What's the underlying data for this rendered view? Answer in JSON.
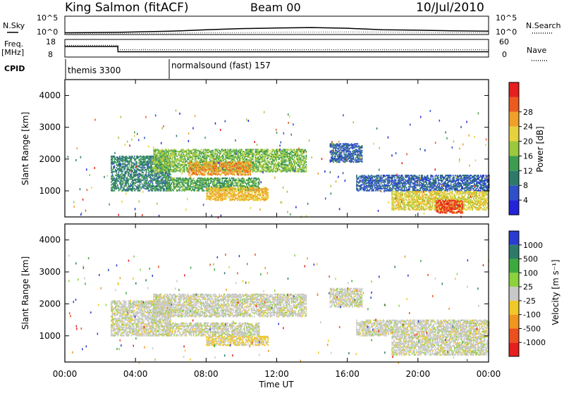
{
  "header": {
    "station": "King Salmon (fitACF)",
    "beam": "Beam 00",
    "date": "10/Jul/2010"
  },
  "top_panels": {
    "nsky_label": "N.Sky",
    "nsky_ticks": [
      "10^5",
      "10^0"
    ],
    "nsearch_label": "N.Search",
    "freq_label": "Freq.",
    "freq_unit": "[MHz]",
    "freq_ticks": [
      "18",
      "8"
    ],
    "nave_label": "Nave",
    "nave_ticks": [
      "60",
      "0"
    ],
    "cpid_label": "CPID",
    "cpid_entries": [
      {
        "name": "themis 3300",
        "start": "00:00"
      },
      {
        "name": "normalsound (fast) 157",
        "start": "06:00"
      }
    ]
  },
  "axes": {
    "x_ticks": [
      "00:00",
      "04:00",
      "08:00",
      "12:00",
      "16:00",
      "20:00",
      "00:00"
    ],
    "x_label": "Time UT",
    "y_ticks": [
      "1000",
      "2000",
      "3000",
      "4000"
    ],
    "y_label": "Slant Range [km]"
  },
  "colorbars": {
    "power": {
      "label": "Power [dB]",
      "ticks": [
        "4",
        "8",
        "12",
        "16",
        "20",
        "24",
        "28"
      ],
      "colors": [
        "#2323d8",
        "#2f50c8",
        "#2e7a6a",
        "#3c9c50",
        "#9bc83c",
        "#e6d23c",
        "#f0a028",
        "#eb5a1e",
        "#e61e1e"
      ]
    },
    "velocity": {
      "label": "Velocity [m s⁻¹]",
      "ticks": [
        "1000",
        "500",
        "100",
        "25",
        "-25",
        "-100",
        "-500",
        "-1000"
      ],
      "colors": [
        "#2a3ccf",
        "#2e7a6a",
        "#3caa3c",
        "#8cd23c",
        "#c8c8c8",
        "#f0c828",
        "#f0961e",
        "#eb501e",
        "#e61e1e"
      ]
    }
  },
  "chart_data": [
    {
      "type": "line",
      "title": "N.Sky / N.Search",
      "x_range_hours": [
        0,
        24
      ],
      "ylim": [
        1,
        100000
      ],
      "y_scale": "log",
      "series": [
        {
          "name": "N.Sky",
          "x": [
            0,
            3,
            6,
            8,
            10,
            12,
            14,
            16,
            18,
            20,
            22,
            24
          ],
          "values": [
            3,
            4,
            8,
            20,
            40,
            60,
            80,
            50,
            20,
            15,
            10,
            8
          ]
        },
        {
          "name": "N.Search",
          "x": [
            0,
            4,
            8,
            12,
            16,
            20,
            24
          ],
          "values": [
            2,
            2,
            3,
            4,
            5,
            4,
            3
          ]
        }
      ]
    },
    {
      "type": "line",
      "title": "Freq. / Nave",
      "x_range_hours": [
        0,
        24
      ],
      "ylim_freq_mhz": [
        8,
        18
      ],
      "ylim_nave": [
        0,
        60
      ],
      "series": [
        {
          "name": "Freq.",
          "x": [
            0,
            3,
            3.01,
            24
          ],
          "values": [
            14,
            14,
            11,
            11
          ]
        },
        {
          "name": "Nave",
          "x": [
            0,
            3,
            3.01,
            24
          ],
          "values": [
            40,
            40,
            25,
            25
          ]
        }
      ]
    },
    {
      "type": "heatmap",
      "title": "Power",
      "x_range_hours": [
        0,
        24
      ],
      "ylim": [
        180,
        4500
      ],
      "value_range": [
        0,
        30
      ],
      "x_unit": "hours UT",
      "y_unit": "km",
      "regions": [
        {
          "t0": 2.6,
          "t1": 6.0,
          "r0": 1000,
          "r1": 2100,
          "value": 9
        },
        {
          "t0": 5.0,
          "t1": 13.7,
          "r0": 1600,
          "r1": 2300,
          "value": 14
        },
        {
          "t0": 7.0,
          "t1": 10.5,
          "r0": 1500,
          "r1": 1900,
          "value": 22
        },
        {
          "t0": 5.7,
          "t1": 11.0,
          "r0": 1000,
          "r1": 1400,
          "value": 12
        },
        {
          "t0": 8.0,
          "t1": 11.5,
          "r0": 700,
          "r1": 1100,
          "value": 20
        },
        {
          "t0": 16.5,
          "t1": 24.0,
          "r0": 1000,
          "r1": 1500,
          "value": 6
        },
        {
          "t0": 18.5,
          "t1": 24.0,
          "r0": 400,
          "r1": 1000,
          "value": 18
        },
        {
          "t0": 21.0,
          "t1": 22.5,
          "r0": 300,
          "r1": 700,
          "value": 26
        },
        {
          "t0": 15.0,
          "t1": 16.8,
          "r0": 1900,
          "r1": 2500,
          "value": 6
        }
      ]
    },
    {
      "type": "heatmap",
      "title": "Velocity",
      "x_range_hours": [
        0,
        24
      ],
      "ylim": [
        180,
        4500
      ],
      "value_range": [
        -1000,
        1000
      ],
      "x_unit": "hours UT",
      "y_unit": "km",
      "regions": [
        {
          "t0": 2.6,
          "t1": 6.0,
          "r0": 1000,
          "r1": 2100,
          "value": 0
        },
        {
          "t0": 5.0,
          "t1": 13.7,
          "r0": 1600,
          "r1": 2300,
          "value": 0
        },
        {
          "t0": 5.7,
          "t1": 11.0,
          "r0": 1000,
          "r1": 1400,
          "value": 0
        },
        {
          "t0": 8.0,
          "t1": 11.5,
          "r0": 700,
          "r1": 1000,
          "value": -150
        },
        {
          "t0": 16.5,
          "t1": 24.0,
          "r0": 1000,
          "r1": 1500,
          "value": 0
        },
        {
          "t0": 18.5,
          "t1": 24.0,
          "r0": 400,
          "r1": 1000,
          "value": 0
        },
        {
          "t0": 15.0,
          "t1": 16.8,
          "r0": 1900,
          "r1": 2500,
          "value": 0
        }
      ]
    }
  ]
}
